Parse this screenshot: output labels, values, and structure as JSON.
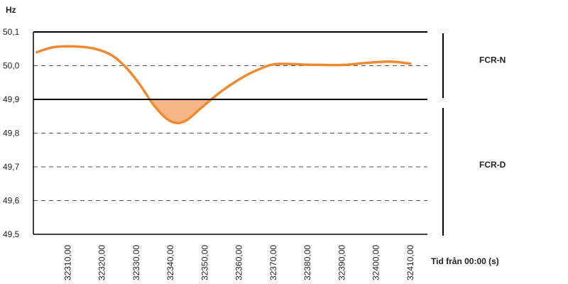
{
  "chart_data": {
    "type": "line",
    "ylabel": "Hz",
    "xlabel": "Tid från 00:00 (s)",
    "ylim": [
      49.5,
      50.1
    ],
    "xlim": [
      32300,
      32415
    ],
    "y_ticks": [
      "50,1",
      "50,0",
      "49,9",
      "49,8",
      "49,7",
      "49,6",
      "49,5"
    ],
    "x_ticks": [
      "32310,00",
      "32320,00",
      "32330,00",
      "32340,00",
      "32350,00",
      "32360,00",
      "32370,00",
      "32380,00",
      "32390,00",
      "32400,00",
      "32410,00"
    ],
    "solid_lines": [
      50.1,
      49.9
    ],
    "dashed_lines": [
      50.0,
      49.8,
      49.7,
      49.6
    ],
    "bands": [
      {
        "label": "FCR-N",
        "range": [
          49.9,
          50.1
        ]
      },
      {
        "label": "FCR-D",
        "range": [
          49.5,
          49.9
        ]
      }
    ],
    "series": [
      {
        "color": "#f08a30",
        "x": [
          32301,
          32306,
          32312,
          32318,
          32323,
          32327,
          32331,
          32335,
          32339,
          32342,
          32345,
          32349,
          32355,
          32361,
          32366,
          32371,
          32380,
          32390,
          32397,
          32404,
          32410
        ],
        "y": [
          50.04,
          50.055,
          50.057,
          50.05,
          50.03,
          49.995,
          49.945,
          49.885,
          49.842,
          49.83,
          49.84,
          49.875,
          49.925,
          49.965,
          49.99,
          50.005,
          50.003,
          50.002,
          50.008,
          50.012,
          50.006
        ]
      }
    ],
    "fill_below": {
      "threshold": 49.9,
      "color": "#f6b587"
    },
    "grid": true
  }
}
